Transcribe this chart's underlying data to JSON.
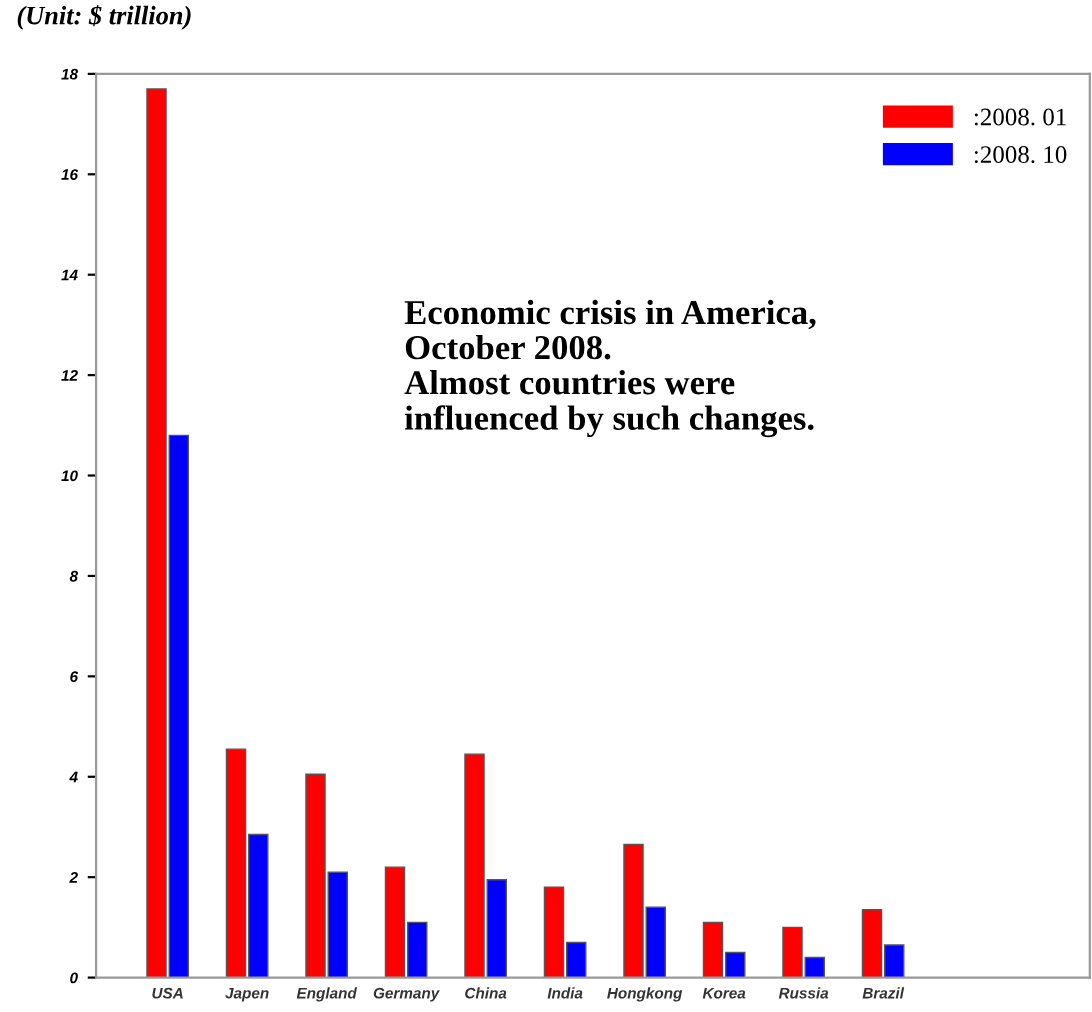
{
  "chart_data": {
    "type": "bar",
    "title": "(Unit: $ trillion)",
    "categories": [
      "USA",
      "Japen",
      "England",
      "Germany",
      "China",
      "India",
      "Hongkong",
      "Korea",
      "Russia",
      "Brazil"
    ],
    "series": [
      {
        "name": ":2008. 01",
        "color": "#ff0000",
        "values": [
          17.7,
          4.55,
          4.05,
          2.2,
          4.45,
          1.8,
          2.65,
          1.1,
          1.0,
          1.35
        ]
      },
      {
        "name": ":2008. 10",
        "color": "#0000ff",
        "values": [
          10.8,
          2.85,
          2.1,
          1.1,
          1.95,
          0.7,
          1.4,
          0.5,
          0.4,
          0.65
        ]
      }
    ],
    "ylim": [
      0,
      18
    ],
    "yticks": [
      0,
      2,
      4,
      6,
      8,
      10,
      12,
      14,
      16,
      18
    ],
    "grid": false,
    "legend": "top right",
    "annotations": [
      "Economic crisis in America,\nOctober 2008.\nAlmost countries were\ninfluenced by such changes."
    ]
  }
}
